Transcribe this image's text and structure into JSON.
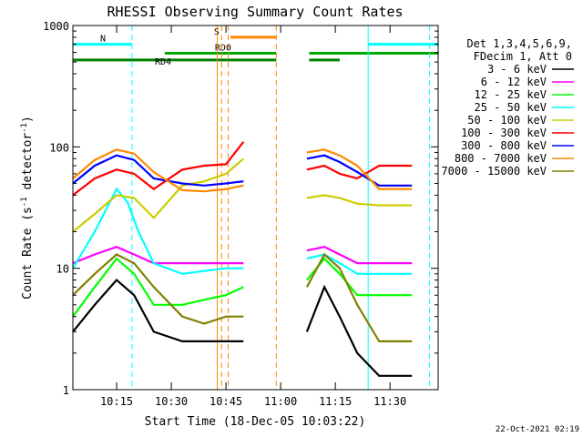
{
  "chart_data": {
    "type": "line",
    "title": "RHESSI Observing Summary Count Rates",
    "xlabel": "Start Time (18-Dec-05 10:03:22)",
    "ylabel_main": "Count Rate (s",
    "ylabel_sup": "-1",
    "ylabel_tail": " detector",
    "ylabel_end": ")",
    "yscale": "log",
    "ylim": [
      1,
      1000
    ],
    "xlim_minutes": [
      10.05,
      11.72
    ],
    "x_tick_labels": [
      "10:15",
      "10:30",
      "10:45",
      "11:00",
      "11:15",
      "11:30"
    ],
    "x_tick_minutes": [
      10.25,
      10.5,
      10.75,
      11.0,
      11.25,
      11.5
    ],
    "y_tick_labels": [
      "1",
      "10",
      "100",
      "1000"
    ],
    "y_tick_values": [
      1,
      10,
      100,
      1000
    ],
    "grid": false,
    "legend_header": [
      "Det 1,3,4,5,6,9,",
      "FDecim 1, Att 0"
    ],
    "data_gap": [
      10.88,
      11.12
    ],
    "series": [
      {
        "name": "3 - 6 keV",
        "color": "#000000",
        "points": [
          [
            10.05,
            3.0
          ],
          [
            10.15,
            5.0
          ],
          [
            10.25,
            8.0
          ],
          [
            10.33,
            6.0
          ],
          [
            10.42,
            3.0
          ],
          [
            10.55,
            2.5
          ],
          [
            10.65,
            2.5
          ],
          [
            10.75,
            2.5
          ],
          [
            10.83,
            2.5
          ],
          [
            11.12,
            3.0
          ],
          [
            11.2,
            7.0
          ],
          [
            11.27,
            4.0
          ],
          [
            11.35,
            2.0
          ],
          [
            11.45,
            1.3
          ],
          [
            11.52,
            1.3
          ],
          [
            11.6,
            1.3
          ]
        ]
      },
      {
        "name": "6 - 12 keV",
        "color": "#ff00ff",
        "points": [
          [
            10.05,
            11.0
          ],
          [
            10.15,
            13.0
          ],
          [
            10.25,
            15.0
          ],
          [
            10.33,
            13.0
          ],
          [
            10.42,
            11.0
          ],
          [
            10.55,
            11.0
          ],
          [
            10.65,
            11.0
          ],
          [
            10.75,
            11.0
          ],
          [
            10.83,
            11.0
          ],
          [
            11.12,
            14.0
          ],
          [
            11.2,
            15.0
          ],
          [
            11.27,
            13.0
          ],
          [
            11.35,
            11.0
          ],
          [
            11.45,
            11.0
          ],
          [
            11.52,
            11.0
          ],
          [
            11.6,
            11.0
          ]
        ]
      },
      {
        "name": "12 - 25 keV",
        "color": "#00ff00",
        "points": [
          [
            10.05,
            4.0
          ],
          [
            10.15,
            7.0
          ],
          [
            10.25,
            12.0
          ],
          [
            10.33,
            9.0
          ],
          [
            10.42,
            5.0
          ],
          [
            10.55,
            5.0
          ],
          [
            10.65,
            5.5
          ],
          [
            10.75,
            6.0
          ],
          [
            10.83,
            7.0
          ],
          [
            11.12,
            8.0
          ],
          [
            11.2,
            12.0
          ],
          [
            11.27,
            9.0
          ],
          [
            11.35,
            6.0
          ],
          [
            11.45,
            6.0
          ],
          [
            11.52,
            6.0
          ],
          [
            11.6,
            6.0
          ]
        ]
      },
      {
        "name": "25 - 50 keV",
        "color": "#00ffff",
        "points": [
          [
            10.05,
            10.0
          ],
          [
            10.15,
            20.0
          ],
          [
            10.25,
            45.0
          ],
          [
            10.3,
            35.0
          ],
          [
            10.35,
            20.0
          ],
          [
            10.42,
            11.0
          ],
          [
            10.55,
            9.0
          ],
          [
            10.65,
            9.5
          ],
          [
            10.75,
            10.0
          ],
          [
            10.83,
            10.0
          ],
          [
            11.12,
            12.0
          ],
          [
            11.2,
            13.0
          ],
          [
            11.27,
            11.0
          ],
          [
            11.35,
            9.0
          ],
          [
            11.45,
            9.0
          ],
          [
            11.52,
            9.0
          ],
          [
            11.6,
            9.0
          ]
        ]
      },
      {
        "name": "50 - 100 keV",
        "color": "#cccc00",
        "points": [
          [
            10.05,
            20.0
          ],
          [
            10.15,
            28.0
          ],
          [
            10.25,
            40.0
          ],
          [
            10.33,
            38.0
          ],
          [
            10.42,
            26.0
          ],
          [
            10.55,
            48.0
          ],
          [
            10.65,
            52.0
          ],
          [
            10.75,
            60.0
          ],
          [
            10.83,
            80.0
          ],
          [
            11.12,
            38.0
          ],
          [
            11.2,
            40.0
          ],
          [
            11.27,
            38.0
          ],
          [
            11.35,
            34.0
          ],
          [
            11.45,
            33.0
          ],
          [
            11.52,
            33.0
          ],
          [
            11.6,
            33.0
          ]
        ]
      },
      {
        "name": "100 - 300 keV",
        "color": "#ff0000",
        "points": [
          [
            10.05,
            40.0
          ],
          [
            10.15,
            55.0
          ],
          [
            10.25,
            65.0
          ],
          [
            10.33,
            60.0
          ],
          [
            10.42,
            45.0
          ],
          [
            10.55,
            65.0
          ],
          [
            10.65,
            70.0
          ],
          [
            10.75,
            72.0
          ],
          [
            10.83,
            110.0
          ],
          [
            11.12,
            65.0
          ],
          [
            11.2,
            70.0
          ],
          [
            11.27,
            60.0
          ],
          [
            11.35,
            55.0
          ],
          [
            11.45,
            70.0
          ],
          [
            11.52,
            70.0
          ],
          [
            11.6,
            70.0
          ]
        ]
      },
      {
        "name": "300 - 800 keV",
        "color": "#0000ff",
        "points": [
          [
            10.05,
            50.0
          ],
          [
            10.15,
            70.0
          ],
          [
            10.25,
            85.0
          ],
          [
            10.33,
            78.0
          ],
          [
            10.42,
            55.0
          ],
          [
            10.55,
            50.0
          ],
          [
            10.65,
            48.0
          ],
          [
            10.75,
            50.0
          ],
          [
            10.83,
            52.0
          ],
          [
            11.12,
            80.0
          ],
          [
            11.2,
            85.0
          ],
          [
            11.27,
            75.0
          ],
          [
            11.35,
            62.0
          ],
          [
            11.45,
            48.0
          ],
          [
            11.52,
            48.0
          ],
          [
            11.6,
            48.0
          ]
        ]
      },
      {
        "name": "800 - 7000 keV",
        "color": "#ff8800",
        "points": [
          [
            10.05,
            55.0
          ],
          [
            10.15,
            78.0
          ],
          [
            10.25,
            95.0
          ],
          [
            10.33,
            88.0
          ],
          [
            10.42,
            62.0
          ],
          [
            10.55,
            44.0
          ],
          [
            10.65,
            43.0
          ],
          [
            10.75,
            45.0
          ],
          [
            10.83,
            48.0
          ],
          [
            11.12,
            90.0
          ],
          [
            11.2,
            95.0
          ],
          [
            11.27,
            85.0
          ],
          [
            11.35,
            70.0
          ],
          [
            11.45,
            45.0
          ],
          [
            11.52,
            45.0
          ],
          [
            11.6,
            45.0
          ]
        ]
      },
      {
        "name": "7000 - 15000 keV",
        "color": "#808000",
        "points": [
          [
            10.05,
            6.0
          ],
          [
            10.15,
            9.0
          ],
          [
            10.25,
            13.0
          ],
          [
            10.33,
            11.0
          ],
          [
            10.42,
            7.0
          ],
          [
            10.55,
            4.0
          ],
          [
            10.65,
            3.5
          ],
          [
            10.75,
            4.0
          ],
          [
            10.83,
            4.0
          ],
          [
            11.12,
            7.0
          ],
          [
            11.2,
            13.0
          ],
          [
            11.27,
            10.0
          ],
          [
            11.35,
            5.0
          ],
          [
            11.45,
            2.5
          ],
          [
            11.52,
            2.5
          ],
          [
            11.6,
            2.5
          ]
        ]
      }
    ],
    "flag_bars": [
      {
        "label": "N",
        "color": "#00ffff",
        "level": 700,
        "segments": [
          [
            10.05,
            10.32
          ],
          [
            11.4,
            11.72
          ]
        ]
      },
      {
        "label": "RD0",
        "color": "#00aa00",
        "level": 590,
        "segments": [
          [
            10.47,
            10.98
          ],
          [
            11.13,
            11.72
          ]
        ]
      },
      {
        "label": "RD4",
        "color": "#008000",
        "level": 520,
        "segments": [
          [
            10.05,
            10.98
          ],
          [
            11.13,
            11.27
          ]
        ]
      },
      {
        "label": "S",
        "color": "#ff8800",
        "level": 800,
        "segments": [
          [
            10.77,
            10.98
          ]
        ]
      }
    ],
    "v_lines": [
      {
        "x": 10.05,
        "color": "#00ffff",
        "style": "solid"
      },
      {
        "x": 10.32,
        "color": "#00ffff",
        "style": "dashed"
      },
      {
        "x": 10.71,
        "color": "#ff8800",
        "style": "solid"
      },
      {
        "x": 10.73,
        "color": "#ff8800",
        "style": "dashed"
      },
      {
        "x": 10.76,
        "color": "#ff8800",
        "style": "dashed"
      },
      {
        "x": 10.98,
        "color": "#ff8800",
        "style": "dashed"
      },
      {
        "x": 11.4,
        "color": "#00ffff",
        "style": "solid"
      },
      {
        "x": 11.68,
        "color": "#00ffff",
        "style": "dashed"
      }
    ]
  },
  "footer_timestamp": "22-Oct-2021 02:19"
}
